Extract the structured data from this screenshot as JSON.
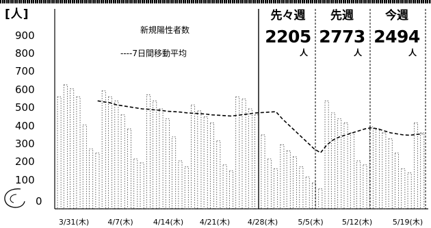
{
  "chart_data": {
    "type": "bar",
    "title": "新規陽性者数",
    "ylabel": "[人]",
    "yticks": [
      "900",
      "800",
      "700",
      "600",
      "500",
      "400",
      "300",
      "200",
      "100",
      "0"
    ],
    "ylim": [
      0,
      1000
    ],
    "xticks": [
      "3/31(木)",
      "4/7(木)",
      "4/14(木)",
      "4/21(木)",
      "4/28(木)",
      "5/5(木)",
      "5/12(木)",
      "5/19(木)"
    ],
    "series": [
      {
        "name": "新規陽性者数",
        "values": [
          560,
          620,
          600,
          560,
          420,
          300,
          280,
          590,
          560,
          540,
          470,
          400,
          250,
          230,
          570,
          540,
          500,
          450,
          360,
          240,
          210,
          520,
          490,
          460,
          430,
          340,
          220,
          190,
          560,
          550,
          500,
          470,
          370,
          250,
          200,
          320,
          290,
          260,
          210,
          160,
          130,
          100,
          540,
          480,
          450,
          430,
          380,
          240,
          220,
          410,
          400,
          380,
          350,
          280,
          200,
          180,
          430,
          380
        ]
      },
      {
        "name": "7日間移動平均",
        "values": [
          null,
          null,
          null,
          null,
          null,
          null,
          540,
          535,
          530,
          520,
          515,
          510,
          505,
          500,
          498,
          495,
          492,
          488,
          486,
          484,
          480,
          478,
          476,
          474,
          470,
          468,
          466,
          464,
          468,
          472,
          476,
          480,
          482,
          484,
          486,
          450,
          420,
          390,
          360,
          330,
          300,
          280,
          320,
          345,
          360,
          370,
          380,
          390,
          400,
          405,
          400,
          390,
          380,
          375,
          370,
          368,
          372,
          375
        ]
      }
    ],
    "week_panels": [
      {
        "label": "先々週",
        "value": "2205",
        "unit": "人"
      },
      {
        "label": "先週",
        "value": "2773",
        "unit": "人"
      },
      {
        "label": "今週",
        "value": "2494",
        "unit": "人"
      }
    ]
  }
}
